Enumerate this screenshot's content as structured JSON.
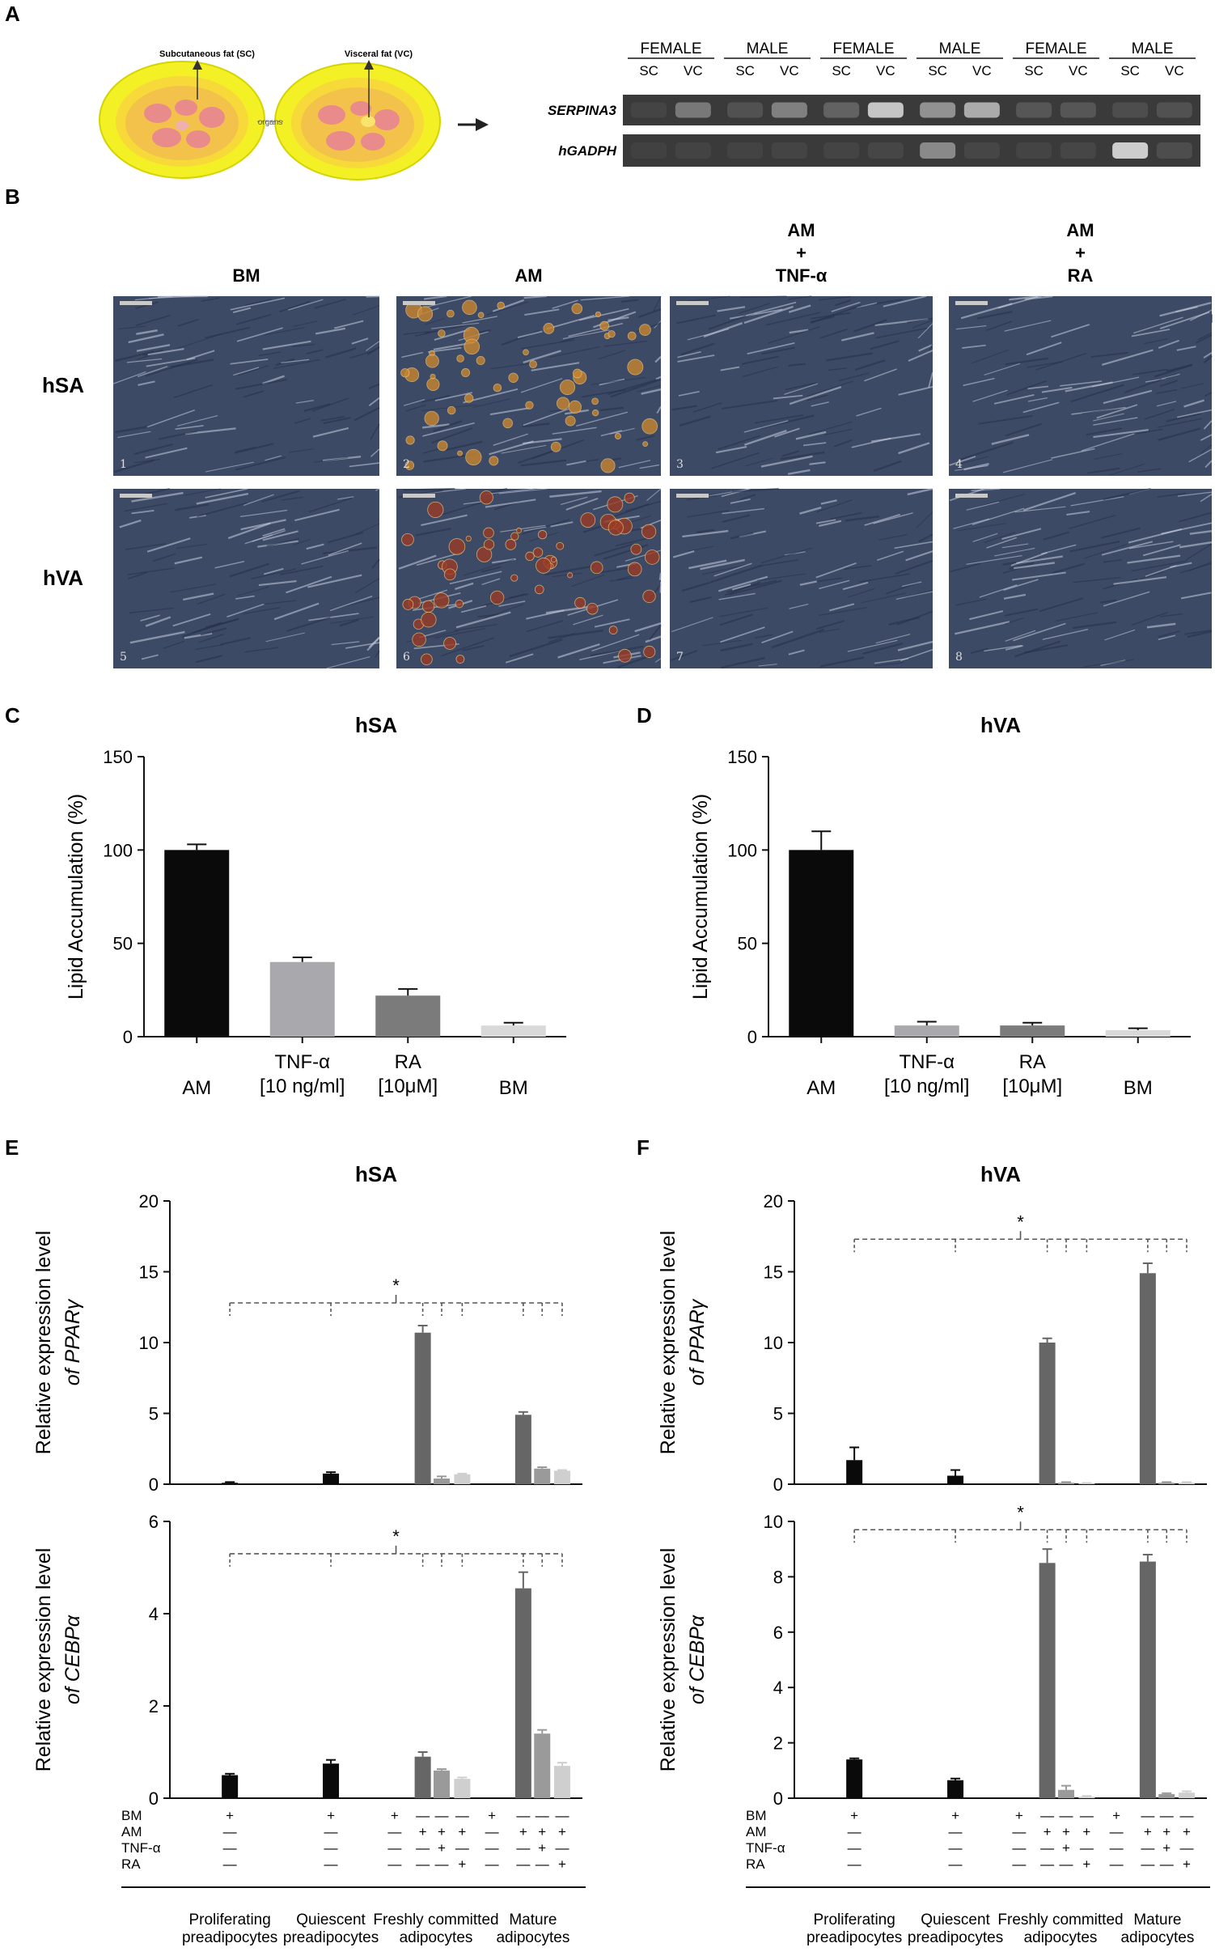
{
  "panel_labels": [
    "A",
    "B",
    "C",
    "D",
    "E",
    "F"
  ],
  "panel_a": {
    "diagram": {
      "sc_label": "Subcutaneous fat (SC)",
      "vc_label": "Visceral fat (VC)",
      "organs_label": "organs"
    },
    "groups": [
      "FEMALE",
      "MALE",
      "FEMALE",
      "MALE",
      "FEMALE",
      "MALE"
    ],
    "lanes": [
      "SC",
      "VC"
    ],
    "genes": [
      "SERPINA3",
      "hGADPH"
    ],
    "band_intensity": {
      "SERPINA3": [
        0.05,
        0.35,
        0.12,
        0.4,
        0.22,
        0.8,
        0.5,
        0.65,
        0.15,
        0.15,
        0.1,
        0.12
      ],
      "hGADPH": [
        0.03,
        0.04,
        0.04,
        0.05,
        0.05,
        0.06,
        0.45,
        0.06,
        0.05,
        0.06,
        0.85,
        0.1
      ]
    }
  },
  "panel_b": {
    "columns": [
      "BM",
      "AM",
      "AM\n+\nTNF-α",
      "AM\n+\nRA"
    ],
    "rows": [
      "hSA",
      "hVA"
    ],
    "image_numbers": [
      "1",
      "2",
      "3",
      "4",
      "5",
      "6",
      "7",
      "8"
    ]
  },
  "panel_c": {
    "chart_data": {
      "type": "bar",
      "title": "hSA",
      "ylabel": "Lipid Accumulation (%)",
      "ylim": [
        0,
        150
      ],
      "yticks": [
        0,
        50,
        100,
        150
      ],
      "categories": [
        "AM",
        "TNF-α\n[10 ng/ml]",
        "RA\n[10μM]",
        "BM"
      ],
      "values": [
        100,
        40,
        22,
        6
      ],
      "errors": [
        3,
        2.5,
        3.5,
        1.5
      ],
      "colors": [
        "#0a0a0a",
        "#a9a9ad",
        "#7b7b7b",
        "#d9d9d9"
      ]
    }
  },
  "panel_d": {
    "chart_data": {
      "type": "bar",
      "title": "hVA",
      "ylabel": "Lipid Accumulation (%)",
      "ylim": [
        0,
        150
      ],
      "yticks": [
        0,
        50,
        100,
        150
      ],
      "categories": [
        "AM",
        "TNF-α\n[10 ng/ml]",
        "RA\n[10μM]",
        "BM"
      ],
      "values": [
        100,
        6,
        6,
        3.5
      ],
      "errors": [
        10,
        2,
        1.5,
        1
      ],
      "colors": [
        "#0a0a0a",
        "#a9a9ad",
        "#7b7b7b",
        "#d9d9d9"
      ]
    }
  },
  "panel_e": {
    "title": "hSA",
    "significance": "*",
    "chart_data": [
      {
        "type": "bar",
        "ylabel": [
          "Relative expression level",
          "of PPARγ"
        ],
        "ylim": [
          0,
          20
        ],
        "yticks": [
          0,
          5,
          10,
          15,
          20
        ],
        "values": [
          0.1,
          0.75,
          0,
          10.7,
          0.4,
          0.7,
          0,
          4.9,
          1.1,
          0.95
        ],
        "errors": [
          0.05,
          0.1,
          0,
          0.5,
          0.15,
          0.05,
          0,
          0.2,
          0.1,
          0.05
        ],
        "bracket_y": 12.8
      },
      {
        "type": "bar",
        "ylabel": [
          "Relative expression level",
          "of CEBPα"
        ],
        "ylim": [
          0,
          6
        ],
        "yticks": [
          0,
          2,
          4,
          6
        ],
        "values": [
          0.5,
          0.75,
          0,
          0.9,
          0.6,
          0.42,
          0,
          4.55,
          1.4,
          0.7
        ],
        "errors": [
          0.03,
          0.08,
          0,
          0.1,
          0.03,
          0.03,
          0,
          0.35,
          0.08,
          0.07
        ],
        "bracket_y": 5.3
      }
    ]
  },
  "panel_f": {
    "title": "hVA",
    "significance": "*",
    "chart_data": [
      {
        "type": "bar",
        "ylabel": [
          "Relative expression level",
          "of PPARγ"
        ],
        "ylim": [
          0,
          20
        ],
        "yticks": [
          0,
          5,
          10,
          15,
          20
        ],
        "values": [
          1.7,
          0.6,
          0,
          10,
          0.1,
          0.05,
          0,
          14.9,
          0.1,
          0.1
        ],
        "errors": [
          0.9,
          0.4,
          0,
          0.3,
          0.05,
          0.03,
          0,
          0.7,
          0.05,
          0.05
        ],
        "bracket_y": 17.3
      },
      {
        "type": "bar",
        "ylabel": [
          "Relative expression level",
          "of CEBPα"
        ],
        "ylim": [
          0,
          10
        ],
        "yticks": [
          0,
          2,
          4,
          6,
          8,
          10
        ],
        "values": [
          1.4,
          0.65,
          0,
          8.5,
          0.3,
          0.05,
          0,
          8.55,
          0.15,
          0.2
        ],
        "errors": [
          0.04,
          0.06,
          0,
          0.5,
          0.15,
          0.03,
          0,
          0.25,
          0.03,
          0.05
        ],
        "bracket_y": 9.7
      }
    ]
  },
  "treatment_table": {
    "row_labels": [
      "BM",
      "AM",
      "TNF-α",
      "RA"
    ],
    "marks": [
      [
        "+",
        "+",
        "+",
        "—",
        "—",
        "—",
        "+",
        "—",
        "—",
        "—"
      ],
      [
        "—",
        "—",
        "—",
        "+",
        "+",
        "+",
        "—",
        "+",
        "+",
        "+"
      ],
      [
        "—",
        "—",
        "—",
        "—",
        "+",
        "—",
        "—",
        "—",
        "+",
        "—"
      ],
      [
        "—",
        "—",
        "—",
        "—",
        "—",
        "+",
        "—",
        "—",
        "—",
        "+"
      ]
    ],
    "groups": [
      [
        "Proliferating",
        "preadipocytes"
      ],
      [
        "Quiescent",
        "preadipocytes"
      ],
      [
        "Freshly committed",
        "adipocytes"
      ],
      [
        "Mature",
        "adipocytes"
      ]
    ]
  },
  "colors": {
    "prolif": "#0a0a0a",
    "am": "#666666",
    "tnf": "#9a9a9a",
    "ra": "#cfcfcf",
    "micro_bg": "#3e4d6a"
  }
}
